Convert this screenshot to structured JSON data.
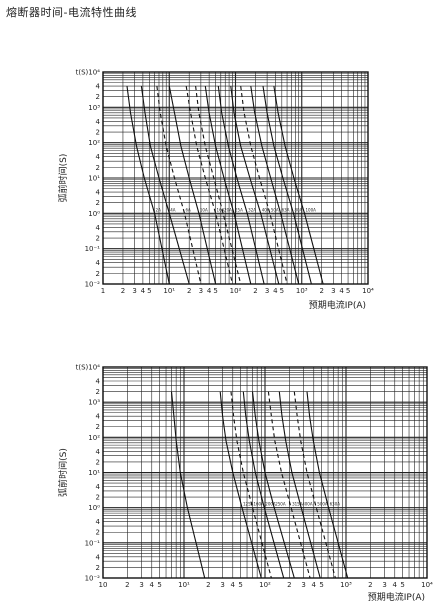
{
  "page": {
    "title": "熔断器时间-电流特性曲线"
  },
  "chart_data": [
    {
      "type": "line",
      "title": "",
      "xlabel": "预期电流IP(A)",
      "ylabel": "弧前时间(S)",
      "x_scale": "log",
      "y_scale": "log",
      "xlim": [
        1,
        10000
      ],
      "ylim": [
        0.01,
        10000
      ],
      "x_tick_labels": [
        "1",
        "2",
        "3",
        "4",
        "5",
        "10¹",
        "2",
        "3",
        "4",
        "5",
        "10²",
        "2",
        "3",
        "4",
        "5",
        "10³",
        "2",
        "3",
        "4",
        "5",
        "10⁴"
      ],
      "y_tick_labels": [
        "t(S)10⁴",
        "4",
        "2",
        "10³",
        "4",
        "2",
        "10²",
        "4",
        "2",
        "10¹",
        "4",
        "2",
        "10⁰",
        "4",
        "2",
        "10⁻¹",
        "4",
        "2",
        "10⁻²"
      ],
      "grid": true,
      "series": [
        {
          "name": "2A",
          "style": "solid",
          "x": [
            2.3,
            2.6,
            3.2,
            4.2,
            6.0,
            10.0
          ],
          "y": [
            4000,
            700,
            80,
            10,
            1.0,
            0.01
          ]
        },
        {
          "name": "4A",
          "style": "solid",
          "x": [
            3.8,
            4.3,
            5.2,
            7.0,
            10.0,
            20.0
          ],
          "y": [
            4000,
            700,
            80,
            10,
            1.0,
            0.01
          ]
        },
        {
          "name": "6A",
          "style": "dashed",
          "x": [
            6.5,
            7.3,
            9.0,
            12.0,
            17.0,
            30.0
          ],
          "y": [
            4000,
            700,
            80,
            10,
            1.0,
            0.01
          ]
        },
        {
          "name": "10A",
          "style": "solid",
          "x": [
            10,
            12,
            15,
            20,
            28,
            50
          ],
          "y": [
            4000,
            700,
            80,
            10,
            1.0,
            0.01
          ]
        },
        {
          "name": "16A",
          "style": "dashed",
          "x": [
            18,
            21,
            26,
            35,
            50,
            90
          ],
          "y": [
            4000,
            700,
            80,
            10,
            1.0,
            0.01
          ]
        },
        {
          "name": "20A",
          "style": "dashed",
          "x": [
            25,
            28,
            35,
            47,
            65,
            120
          ],
          "y": [
            4000,
            700,
            80,
            10,
            1.0,
            0.01
          ]
        },
        {
          "name": "25A",
          "style": "solid",
          "x": [
            35,
            40,
            50,
            67,
            95,
            170
          ],
          "y": [
            4000,
            700,
            80,
            10,
            1.0,
            0.01
          ]
        },
        {
          "name": "32A",
          "style": "solid",
          "x": [
            55,
            62,
            78,
            105,
            150,
            270
          ],
          "y": [
            4000,
            700,
            80,
            10,
            1.0,
            0.01
          ]
        },
        {
          "name": "40A",
          "style": "solid",
          "x": [
            85,
            95,
            120,
            165,
            240,
            450
          ],
          "y": [
            4000,
            700,
            80,
            10,
            1.0,
            0.01
          ]
        },
        {
          "name": "50A",
          "style": "dashed",
          "x": [
            120,
            135,
            170,
            230,
            330,
            600
          ],
          "y": [
            4000,
            700,
            80,
            10,
            1.0,
            0.01
          ]
        },
        {
          "name": "63A",
          "style": "solid",
          "x": [
            170,
            195,
            250,
            340,
            480,
            900
          ],
          "y": [
            4000,
            700,
            80,
            10,
            1.0,
            0.01
          ]
        },
        {
          "name": "80A",
          "style": "solid",
          "x": [
            260,
            300,
            380,
            520,
            750,
            1400
          ],
          "y": [
            4000,
            700,
            80,
            10,
            1.0,
            0.01
          ]
        },
        {
          "name": "100A",
          "style": "solid",
          "x": [
            380,
            440,
            560,
            760,
            1100,
            2100
          ],
          "y": [
            4000,
            700,
            80,
            10,
            1.0,
            0.01
          ]
        }
      ]
    },
    {
      "type": "line",
      "title": "",
      "xlabel": "预期电流IP(A)",
      "ylabel": "弧前时间(S)",
      "x_scale": "log",
      "y_scale": "log",
      "xlim": [
        10,
        100000
      ],
      "ylim": [
        0.01,
        10000
      ],
      "x_tick_labels": [
        "10",
        "2",
        "3",
        "4",
        "5",
        "10¹",
        "2",
        "3",
        "4",
        "5",
        "10²",
        "2",
        "3",
        "4",
        "5",
        "10³",
        "2",
        "3",
        "4",
        "5",
        "10⁴"
      ],
      "y_tick_labels": [
        "t(S)10⁴",
        "4",
        "2",
        "10³",
        "4",
        "2",
        "10²",
        "4",
        "2",
        "10¹",
        "4",
        "2",
        "10⁰",
        "4",
        "2",
        "10⁻¹",
        "4",
        "2",
        "10⁻²"
      ],
      "grid": true,
      "series": [
        {
          "name": "",
          "style": "solid",
          "x": [
            70,
            75,
            80,
            90,
            110,
            180
          ],
          "y": [
            2000,
            400,
            80,
            10,
            1.0,
            0.01
          ]
        },
        {
          "name": "125A",
          "style": "solid",
          "x": [
            280,
            300,
            330,
            400,
            520,
            900
          ],
          "y": [
            2000,
            400,
            80,
            10,
            1.0,
            0.01
          ]
        },
        {
          "name": "160A",
          "style": "dashed",
          "x": [
            380,
            410,
            450,
            540,
            700,
            1200
          ],
          "y": [
            2000,
            400,
            80,
            10,
            1.0,
            0.01
          ]
        },
        {
          "name": "200A",
          "style": "solid",
          "x": [
            540,
            580,
            640,
            760,
            980,
            1700
          ],
          "y": [
            2000,
            400,
            80,
            10,
            1.0,
            0.01
          ]
        },
        {
          "name": "250A",
          "style": "solid",
          "x": [
            700,
            760,
            840,
            1000,
            1300,
            2300
          ],
          "y": [
            2000,
            400,
            80,
            10,
            1.0,
            0.01
          ]
        },
        {
          "name": "315A",
          "style": "dashed",
          "x": [
            1100,
            1200,
            1320,
            1600,
            2100,
            3600
          ],
          "y": [
            2000,
            400,
            80,
            10,
            1.0,
            0.01
          ]
        },
        {
          "name": "400A",
          "style": "solid",
          "x": [
            1500,
            1620,
            1800,
            2150,
            2800,
            4800
          ],
          "y": [
            2000,
            400,
            80,
            10,
            1.0,
            0.01
          ]
        },
        {
          "name": "500A",
          "style": "dashed",
          "x": [
            2300,
            2500,
            2760,
            3300,
            4300,
            7400
          ],
          "y": [
            2000,
            400,
            80,
            10,
            1.0,
            0.01
          ]
        },
        {
          "name": "630A",
          "style": "solid",
          "x": [
            3300,
            3550,
            3950,
            4700,
            6100,
            10500
          ],
          "y": [
            2000,
            400,
            80,
            10,
            1.0,
            0.01
          ]
        }
      ]
    }
  ]
}
